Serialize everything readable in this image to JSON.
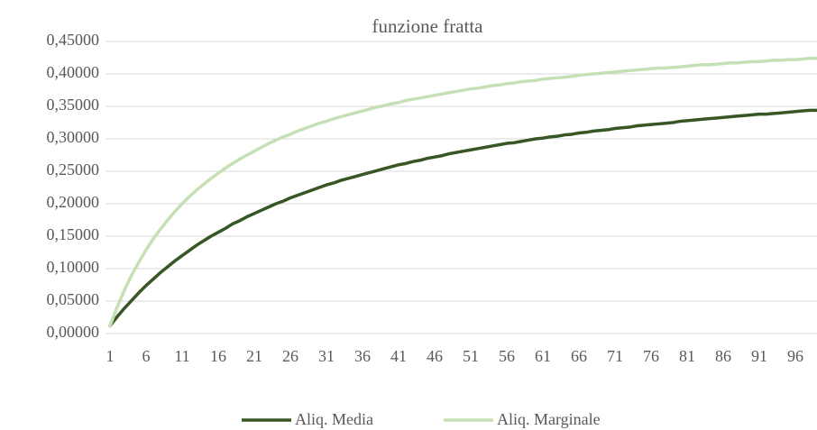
{
  "chart_data": {
    "type": "line",
    "title": "funzione fratta",
    "categories": [
      "1",
      null,
      null,
      null,
      null,
      "6",
      null,
      null,
      null,
      null,
      "11",
      null,
      null,
      null,
      null,
      "16",
      null,
      null,
      null,
      null,
      "21",
      null,
      null,
      null,
      null,
      "26",
      null,
      null,
      null,
      null,
      "31",
      null,
      null,
      null,
      null,
      "36",
      null,
      null,
      null,
      null,
      "41",
      null,
      null,
      null,
      null,
      "46",
      null,
      null,
      null,
      null,
      "51",
      null,
      null,
      null,
      null,
      "56",
      null,
      null,
      null,
      null,
      "61",
      null,
      null,
      null,
      null,
      "66",
      null,
      null,
      null,
      null,
      "71",
      null,
      null,
      null,
      null,
      "76",
      null,
      null,
      null,
      null,
      "81",
      null,
      null,
      null,
      null,
      "86",
      null,
      null,
      null,
      null,
      "91",
      null,
      null,
      null,
      null,
      "96",
      null,
      null,
      null,
      null
    ],
    "series": [
      {
        "name": "Aliq. Media",
        "color": "#375623",
        "values": [
          0.012,
          0.026,
          0.039,
          0.051,
          0.063,
          0.074,
          0.084,
          0.094,
          0.103,
          0.112,
          0.12,
          0.128,
          0.136,
          0.143,
          0.15,
          0.156,
          0.162,
          0.169,
          0.174,
          0.18,
          0.185,
          0.19,
          0.195,
          0.2,
          0.204,
          0.209,
          0.213,
          0.217,
          0.221,
          0.225,
          0.229,
          0.232,
          0.236,
          0.239,
          0.242,
          0.245,
          0.248,
          0.251,
          0.254,
          0.257,
          0.26,
          0.262,
          0.265,
          0.267,
          0.27,
          0.272,
          0.274,
          0.277,
          0.279,
          0.281,
          0.283,
          0.285,
          0.287,
          0.289,
          0.291,
          0.293,
          0.294,
          0.296,
          0.298,
          0.3,
          0.301,
          0.303,
          0.304,
          0.306,
          0.307,
          0.309,
          0.31,
          0.312,
          0.313,
          0.314,
          0.316,
          0.317,
          0.318,
          0.32,
          0.321,
          0.322,
          0.323,
          0.324,
          0.325,
          0.327,
          0.328,
          0.329,
          0.33,
          0.331,
          0.332,
          0.333,
          0.334,
          0.335,
          0.336,
          0.337,
          0.338,
          0.338,
          0.339,
          0.34,
          0.341,
          0.342,
          0.343,
          0.344,
          0.344,
          0.345
        ]
      },
      {
        "name": "Aliq. Marginale",
        "color": "#c5e0b4",
        "values": [
          0.012,
          0.041,
          0.067,
          0.09,
          0.11,
          0.129,
          0.146,
          0.161,
          0.175,
          0.188,
          0.2,
          0.211,
          0.221,
          0.23,
          0.239,
          0.247,
          0.255,
          0.262,
          0.269,
          0.275,
          0.281,
          0.287,
          0.293,
          0.298,
          0.303,
          0.307,
          0.312,
          0.316,
          0.32,
          0.324,
          0.327,
          0.331,
          0.334,
          0.337,
          0.34,
          0.343,
          0.346,
          0.349,
          0.351,
          0.354,
          0.356,
          0.359,
          0.361,
          0.363,
          0.365,
          0.367,
          0.369,
          0.371,
          0.373,
          0.375,
          0.377,
          0.378,
          0.38,
          0.382,
          0.383,
          0.385,
          0.386,
          0.388,
          0.389,
          0.39,
          0.392,
          0.393,
          0.394,
          0.395,
          0.396,
          0.398,
          0.399,
          0.4,
          0.401,
          0.402,
          0.403,
          0.404,
          0.405,
          0.406,
          0.407,
          0.408,
          0.409,
          0.409,
          0.41,
          0.411,
          0.412,
          0.413,
          0.414,
          0.414,
          0.415,
          0.416,
          0.417,
          0.417,
          0.418,
          0.419,
          0.419,
          0.42,
          0.421,
          0.421,
          0.422,
          0.422,
          0.423,
          0.424,
          0.424,
          0.425
        ]
      }
    ],
    "ylim": [
      0,
      0.45
    ],
    "yticks": [
      {
        "value": 0,
        "label": "0,00000"
      },
      {
        "value": 0.05,
        "label": "0,05000"
      },
      {
        "value": 0.1,
        "label": "0,10000"
      },
      {
        "value": 0.15,
        "label": "0,15000"
      },
      {
        "value": 0.2,
        "label": "0,20000"
      },
      {
        "value": 0.25,
        "label": "0,25000"
      },
      {
        "value": 0.3,
        "label": "0,30000"
      },
      {
        "value": 0.35,
        "label": "0,35000"
      },
      {
        "value": 0.4,
        "label": "0,40000"
      },
      {
        "value": 0.45,
        "label": "0,45000"
      }
    ],
    "grid": true,
    "legend": "bottom"
  }
}
